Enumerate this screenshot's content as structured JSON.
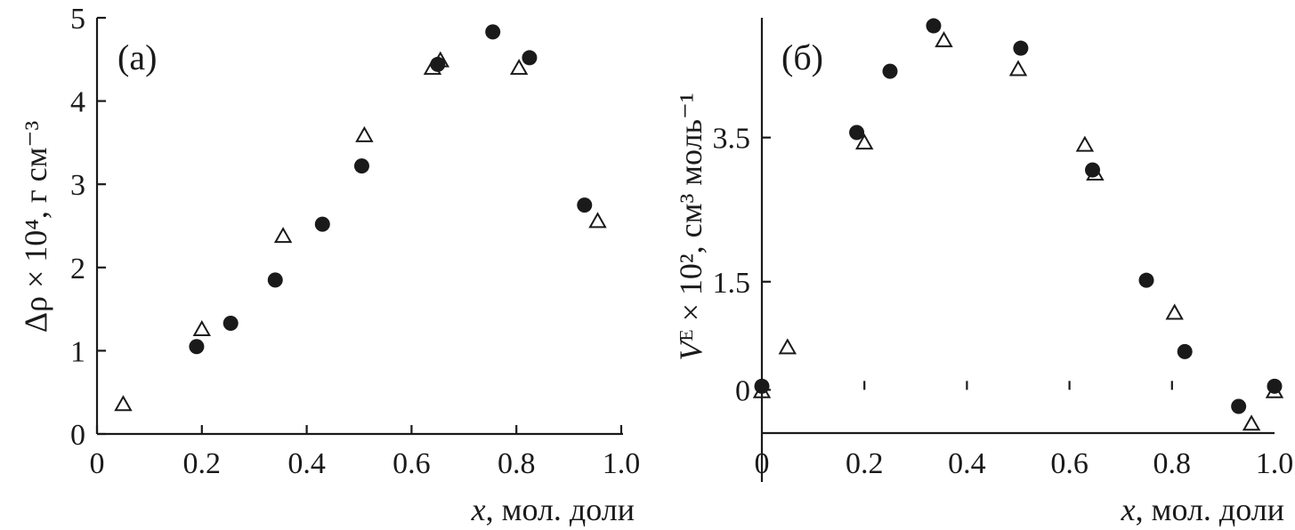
{
  "chart_data": [
    {
      "type": "scatter",
      "panel_label": "(а)",
      "xlabel_var": "x",
      "xlabel_rest": ", мол. доли",
      "ylabel": "Δρ × 10⁴, г см⁻³",
      "xlim": [
        0,
        1.0
      ],
      "ylim": [
        0,
        5
      ],
      "xticks": [
        0,
        0.2,
        0.4,
        0.6,
        0.8,
        1.0
      ],
      "xtick_labels": [
        "0",
        "0.2",
        "0.4",
        "0.6",
        "0.8",
        "1.0"
      ],
      "yticks": [
        0,
        1,
        2,
        3,
        4,
        5
      ],
      "ytick_labels": [
        "0",
        "1",
        "2",
        "3",
        "4",
        "5"
      ],
      "series": [
        {
          "marker": "circle-filled",
          "x": [
            0.19,
            0.255,
            0.34,
            0.43,
            0.505,
            0.65,
            0.755,
            0.825,
            0.93
          ],
          "y": [
            1.05,
            1.33,
            1.85,
            2.52,
            3.22,
            4.44,
            4.83,
            4.52,
            2.75
          ]
        },
        {
          "marker": "triangle-open",
          "x": [
            0.05,
            0.2,
            0.355,
            0.51,
            0.64,
            0.655,
            0.805,
            0.955
          ],
          "y": [
            0.35,
            1.25,
            2.37,
            3.58,
            4.39,
            4.48,
            4.39,
            2.55
          ]
        }
      ]
    },
    {
      "type": "scatter",
      "panel_label": "(б)",
      "xlabel_var": "x",
      "xlabel_rest": ", мол. доли",
      "ylabel_var": "V",
      "ylabel_rest": "ᴱ × 10², см³ моль⁻¹",
      "xlim": [
        0,
        1.0
      ],
      "ylim": [
        -0.6,
        5.1
      ],
      "xticks": [
        0,
        0.2,
        0.4,
        0.6,
        0.8,
        1.0
      ],
      "xtick_labels": [
        "0",
        "0.2",
        "0.4",
        "0.6",
        "0.8",
        "1.0"
      ],
      "yticks": [
        0,
        1.5,
        3.5
      ],
      "ytick_labels": [
        "0",
        "1.5",
        "3.5"
      ],
      "series": [
        {
          "marker": "circle-filled",
          "x": [
            0.0,
            0.185,
            0.25,
            0.335,
            0.505,
            0.645,
            0.75,
            0.825,
            0.93,
            1.0
          ],
          "y": [
            0.05,
            3.57,
            4.42,
            5.05,
            4.74,
            3.05,
            1.52,
            0.53,
            -0.23,
            0.05
          ]
        },
        {
          "marker": "triangle-open",
          "x": [
            0.0,
            0.05,
            0.2,
            0.355,
            0.5,
            0.63,
            0.65,
            0.805,
            0.955,
            1.0
          ],
          "y": [
            -0.03,
            0.58,
            3.42,
            4.84,
            4.44,
            3.39,
            2.99,
            1.06,
            -0.48,
            -0.03
          ]
        }
      ]
    }
  ]
}
